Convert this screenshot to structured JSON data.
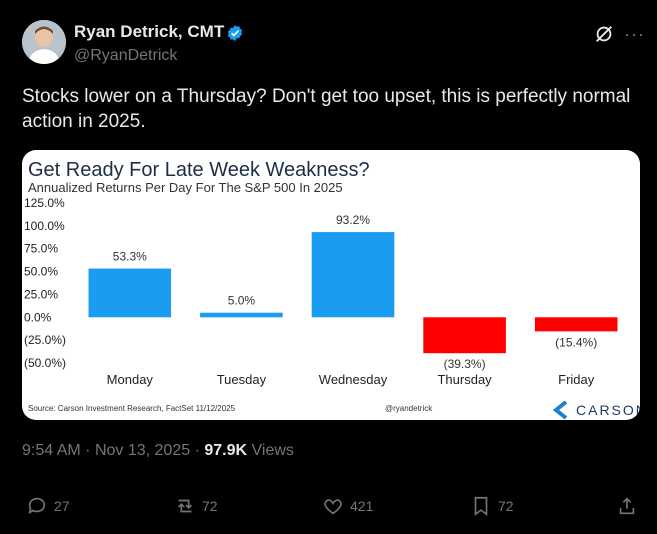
{
  "author": {
    "name": "Ryan Detrick, CMT",
    "handle": "@RyanDetrick"
  },
  "tweet": {
    "text": "Stocks lower on a Thursday? Don't get too upset, this is perfectly normal action in 2025."
  },
  "meta": {
    "time": "9:54 AM",
    "date": "Nov 13, 2025",
    "views_count": "97.9K",
    "views_label": "Views"
  },
  "actions": {
    "replies": "27",
    "reposts": "72",
    "likes": "421",
    "bookmarks": "72"
  },
  "colors": {
    "positive": "#1a9cf0",
    "negative": "#ff0000",
    "brand": "#1e3a5f"
  },
  "card": {
    "source": "Source: Carson Investment Research, FactSet 11/12/2025",
    "credit": "@ryandetrick",
    "brand": "CARSON"
  },
  "chart_data": {
    "type": "bar",
    "title": "Get Ready For Late Week Weakness?",
    "subtitle": "Annualized Returns Per Day For The S&P 500 In 2025",
    "categories": [
      "Monday",
      "Tuesday",
      "Wednesday",
      "Thursday",
      "Friday"
    ],
    "values": [
      53.3,
      5.0,
      93.2,
      -39.3,
      -15.4
    ],
    "data_labels": [
      "53.3%",
      "5.0%",
      "93.2%",
      "(39.3%)",
      "(15.4%)"
    ],
    "yticks": [
      125,
      100,
      75,
      50,
      25,
      0,
      -25,
      -50
    ],
    "ytick_labels": [
      "125.0%",
      "100.0%",
      "75.0%",
      "50.0%",
      "25.0%",
      "0.0%",
      "(25.0%)",
      "(50.0%)"
    ],
    "ylim": [
      -50,
      125
    ],
    "xlabel": "",
    "ylabel": ""
  }
}
